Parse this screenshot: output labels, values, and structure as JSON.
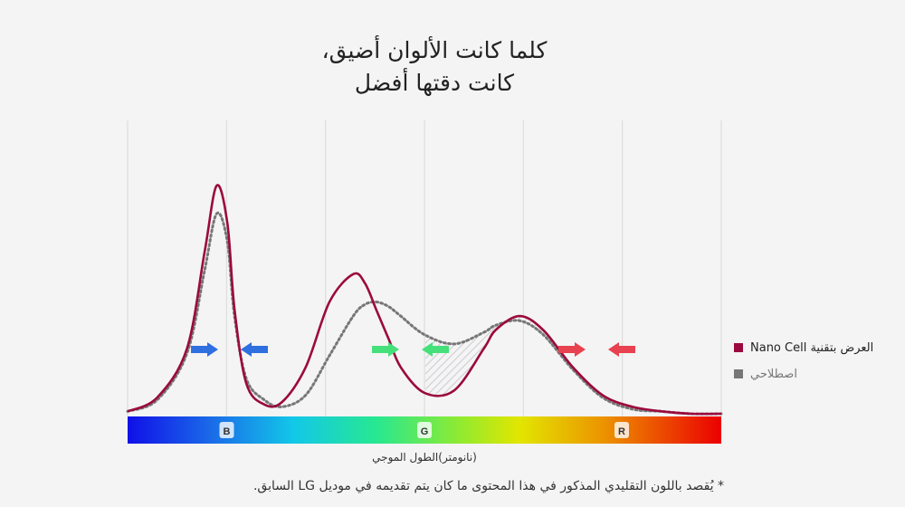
{
  "title": {
    "line1": "كلما كانت الألوان أضيق،",
    "line2": "كانت دقتها أفضل"
  },
  "legend": {
    "nano_cell": "العرض بتقنية Nano Cell",
    "conventional": "اصطلاحي"
  },
  "colors": {
    "nano_cell": "#9b0a3c",
    "conventional": "#777777",
    "blue": "#2f6fe0",
    "green": "#45e07a",
    "red": "#e8414f",
    "background": "#f4f4f4"
  },
  "xlabel": "(نانومتر)الطول الموجي",
  "footnote": "* يُقصد باللون التقليدي المذكور في هذا المحتوى ما كان يتم تقديمه في موديل LG السابق.",
  "chart_data": {
    "type": "line",
    "x_tick_labels": [
      "B",
      "G",
      "R"
    ],
    "ylim": [
      0,
      1
    ],
    "grid": true,
    "legend_position": "right",
    "series": [
      {
        "name": "العرض بتقنية Nano Cell",
        "style": "solid",
        "x": [
          0,
          0.05,
          0.1,
          0.13,
          0.15,
          0.168,
          0.18,
          0.2,
          0.23,
          0.26,
          0.3,
          0.34,
          0.38,
          0.4,
          0.42,
          0.44,
          0.46,
          0.5,
          0.55,
          0.6,
          0.62,
          0.66,
          0.7,
          0.75,
          0.8,
          0.85,
          0.9,
          0.95,
          1
        ],
        "y": [
          0.01,
          0.07,
          0.28,
          0.7,
          0.98,
          0.82,
          0.45,
          0.13,
          0.04,
          0.05,
          0.2,
          0.48,
          0.6,
          0.56,
          0.44,
          0.32,
          0.2,
          0.09,
          0.1,
          0.28,
          0.36,
          0.42,
          0.36,
          0.2,
          0.08,
          0.03,
          0.01,
          0,
          0
        ]
      },
      {
        "name": "اصطلاحي",
        "style": "dotted",
        "x": [
          0,
          0.05,
          0.1,
          0.13,
          0.15,
          0.168,
          0.18,
          0.2,
          0.23,
          0.26,
          0.3,
          0.34,
          0.38,
          0.4,
          0.42,
          0.44,
          0.46,
          0.5,
          0.55,
          0.6,
          0.62,
          0.66,
          0.7,
          0.75,
          0.8,
          0.85,
          0.9,
          0.95,
          1
        ],
        "y": [
          0.01,
          0.06,
          0.26,
          0.62,
          0.86,
          0.74,
          0.42,
          0.15,
          0.06,
          0.03,
          0.08,
          0.25,
          0.42,
          0.47,
          0.48,
          0.46,
          0.42,
          0.34,
          0.3,
          0.35,
          0.38,
          0.4,
          0.34,
          0.19,
          0.07,
          0.02,
          0.01,
          0,
          0
        ]
      }
    ],
    "arrows": [
      {
        "color": "blue",
        "direction": "right"
      },
      {
        "color": "blue",
        "direction": "left"
      },
      {
        "color": "green",
        "direction": "right"
      },
      {
        "color": "green",
        "direction": "left"
      },
      {
        "color": "red",
        "direction": "right"
      },
      {
        "color": "red",
        "direction": "left"
      }
    ]
  }
}
